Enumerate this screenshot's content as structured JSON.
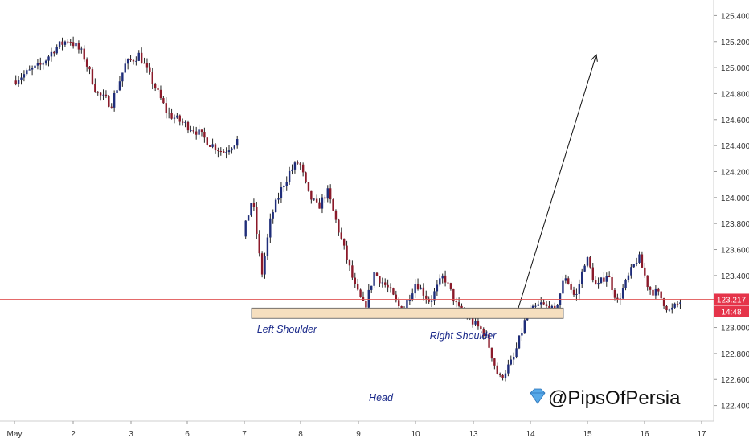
{
  "chart_data": {
    "type": "candlestick",
    "instrument_price_last": "123.217",
    "countdown": "14:48",
    "x_ticks": [
      "May",
      "2",
      "3",
      "6",
      "7",
      "8",
      "9",
      "10",
      "13",
      "14",
      "15",
      "16",
      "17"
    ],
    "y_ticks": [
      "125.400",
      "125.200",
      "125.000",
      "124.800",
      "124.600",
      "124.400",
      "124.200",
      "124.000",
      "123.800",
      "123.600",
      "123.400",
      "123.200",
      "123.000",
      "122.800",
      "122.600",
      "122.400"
    ],
    "ylim": [
      122.28,
      125.52
    ],
    "last_price": 123.217,
    "neckline_zone": {
      "low": 123.07,
      "high": 123.15,
      "from_day": "7",
      "to_day": "14"
    },
    "arrow": {
      "from": {
        "day": 13.6,
        "price": 123.15
      },
      "to": {
        "day": 15.1,
        "price": 125.1
      }
    },
    "annotations": [
      {
        "text": "Left Shoulder",
        "day": 7.7,
        "price": 122.95
      },
      {
        "text": "Head",
        "day": 9.35,
        "price": 122.5
      },
      {
        "text": "Right Shoulder",
        "day": 12.8,
        "price": 122.92
      }
    ],
    "sessions": [
      {
        "day_start": 0.0,
        "day_end": 3.9,
        "open": 124.9,
        "path": [
          124.96,
          125.02,
          125.15,
          125.22,
          125.1,
          124.8,
          124.72,
          125.02,
          125.1,
          124.88,
          124.65,
          124.58,
          124.52,
          124.42,
          124.35,
          124.44
        ]
      },
      {
        "day_start": 4.0,
        "day_end": 6.3,
        "open": 123.7,
        "path": [
          124.0,
          123.4,
          123.85,
          124.05,
          124.2,
          124.28,
          124.02,
          123.92,
          124.05,
          123.8,
          123.55,
          123.3,
          123.15,
          123.42
        ]
      },
      {
        "day_start": 6.3,
        "day_end": 9.45,
        "open": 123.42,
        "path": [
          123.3,
          123.12,
          123.35,
          123.2,
          123.4,
          123.15,
          123.05,
          122.95,
          122.6,
          122.75,
          123.1,
          123.18,
          123.12
        ]
      },
      {
        "day_start": 9.45,
        "day_end": 11.65,
        "open": 123.12,
        "path": [
          123.4,
          123.22,
          123.55,
          123.3,
          123.42,
          123.2,
          123.38,
          123.55,
          123.3,
          123.25,
          123.12,
          123.2
        ]
      }
    ]
  },
  "watermark": {
    "logo_icon": "diamond-icon",
    "text": "@PipsOfPersia"
  },
  "colors": {
    "bull": "#1f2d7a",
    "bear": "#8b1a2a",
    "wick": "#222222",
    "zone_fill": "#f6dfbf",
    "zone_stroke": "#555555",
    "last_price_line": "#e05555",
    "last_price_badge": "#e5344a",
    "annotation_text": "#1b2a8a",
    "axis_text": "#333333"
  }
}
